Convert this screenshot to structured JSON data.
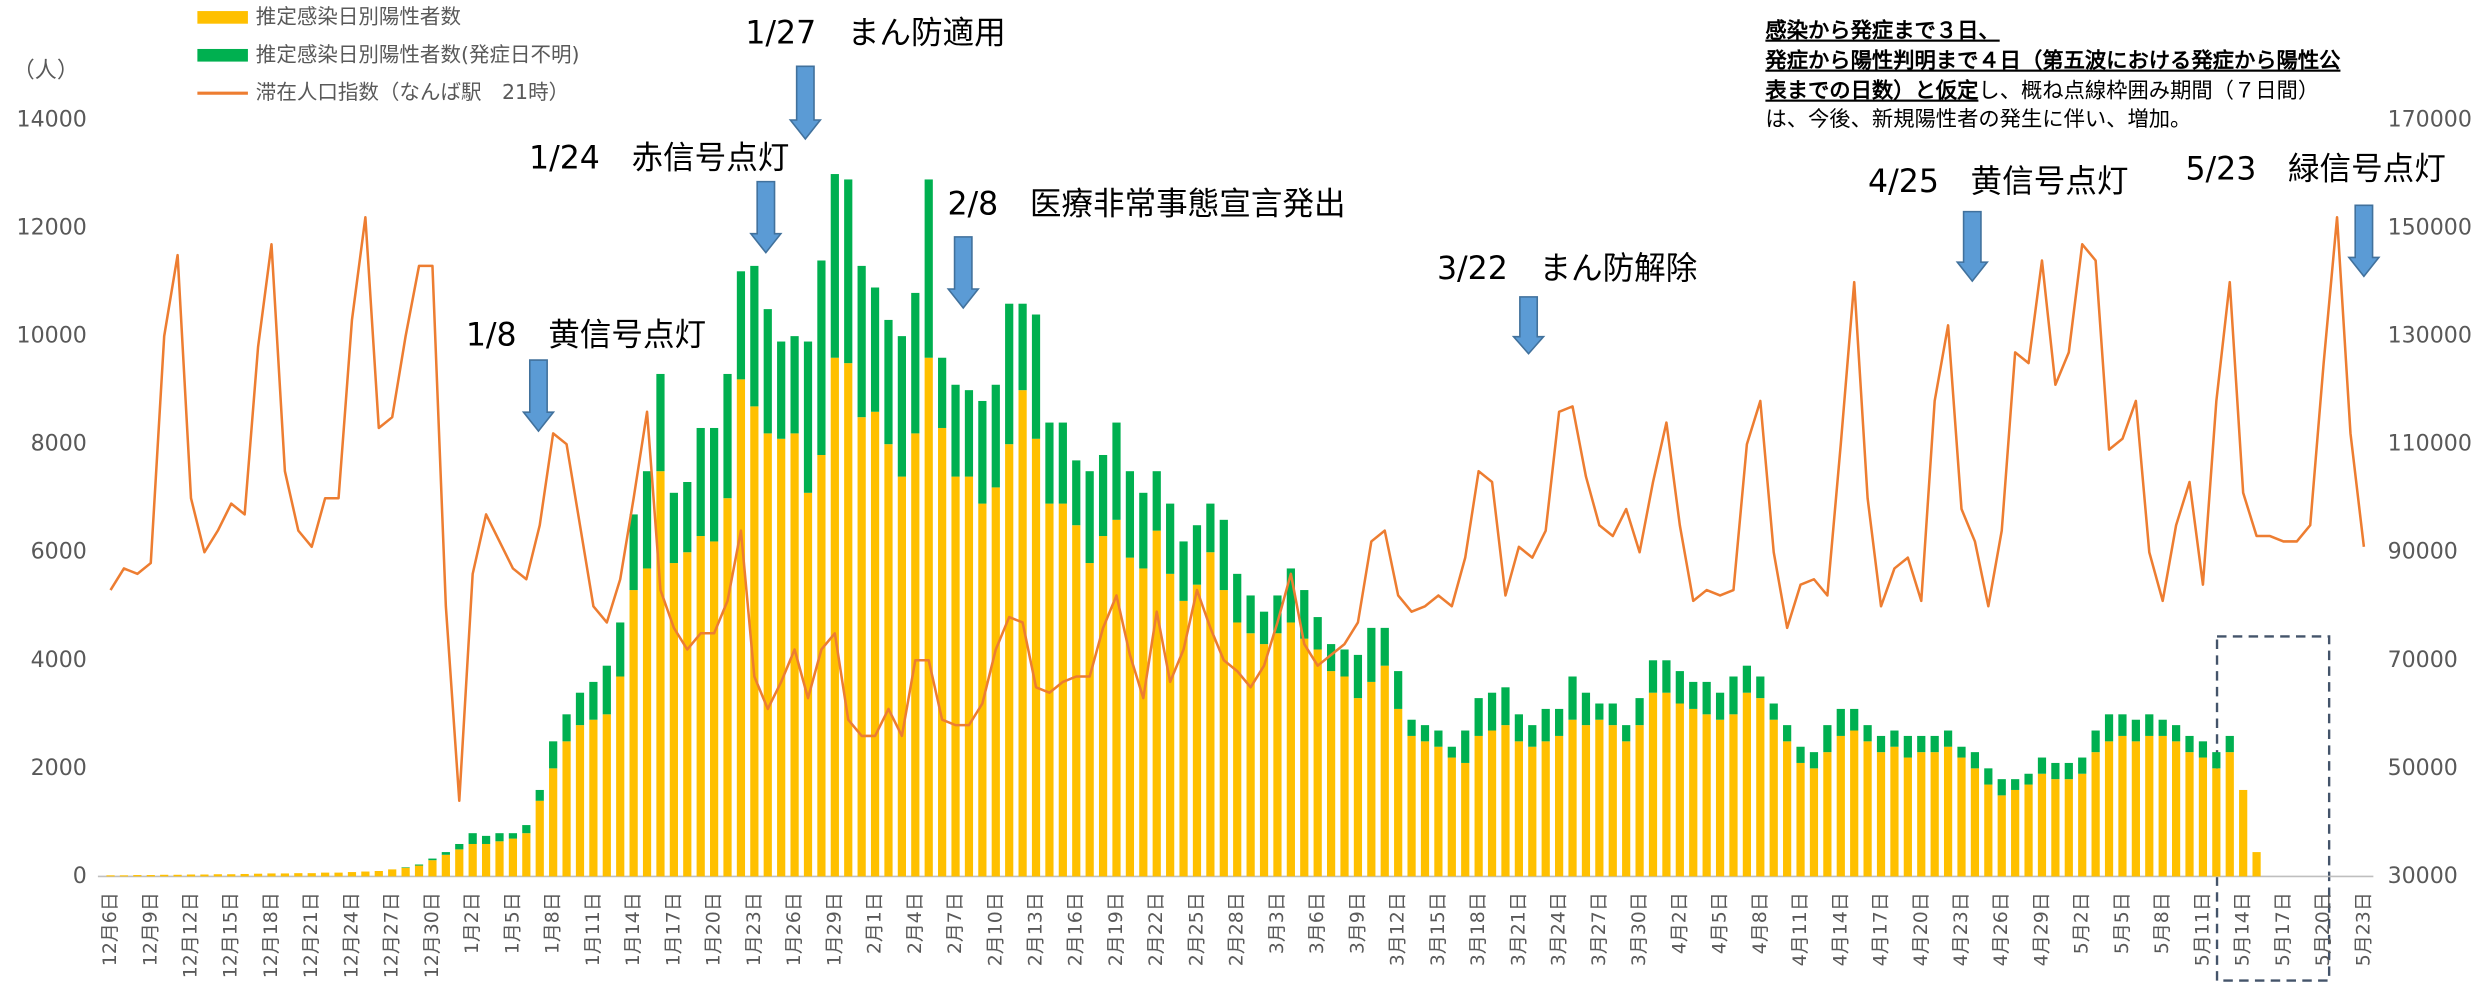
{
  "chart_data": {
    "type": "bar",
    "y_unit_label": "（人）",
    "categories": [
      "12月6日",
      null,
      null,
      "12月9日",
      null,
      null,
      "12月12日",
      null,
      null,
      "12月15日",
      null,
      null,
      "12月18日",
      null,
      null,
      "12月21日",
      null,
      null,
      "12月24日",
      null,
      null,
      "12月27日",
      null,
      null,
      "12月30日",
      null,
      null,
      "1月2日",
      null,
      null,
      "1月5日",
      null,
      null,
      "1月8日",
      null,
      null,
      "1月11日",
      null,
      null,
      "1月14日",
      null,
      null,
      "1月17日",
      null,
      null,
      "1月20日",
      null,
      null,
      "1月23日",
      null,
      null,
      "1月26日",
      null,
      null,
      "1月29日",
      null,
      null,
      "2月1日",
      null,
      null,
      "2月4日",
      null,
      null,
      "2月7日",
      null,
      null,
      "2月10日",
      null,
      null,
      "2月13日",
      null,
      null,
      "2月16日",
      null,
      null,
      "2月19日",
      null,
      null,
      "2月22日",
      null,
      null,
      "2月25日",
      null,
      null,
      "2月28日",
      null,
      null,
      "3月3日",
      null,
      null,
      "3月6日",
      null,
      null,
      "3月9日",
      null,
      null,
      "3月12日",
      null,
      null,
      "3月15日",
      null,
      null,
      "3月18日",
      null,
      null,
      "3月21日",
      null,
      null,
      "3月24日",
      null,
      null,
      "3月27日",
      null,
      null,
      "3月30日",
      null,
      null,
      "4月2日",
      null,
      null,
      "4月5日",
      null,
      null,
      "4月8日",
      null,
      null,
      "4月11日",
      null,
      null,
      "4月14日",
      null,
      null,
      "4月17日",
      null,
      null,
      "4月20日",
      null,
      null,
      "4月23日",
      null,
      null,
      "4月26日",
      null,
      null,
      "4月29日",
      null,
      null,
      "5月2日",
      null,
      null,
      "5月5日",
      null,
      null,
      "5月8日",
      null,
      null,
      "5月11日",
      null,
      null,
      "5月14日",
      null,
      null,
      "5月17日",
      null,
      null,
      "5月20日",
      null,
      null,
      "5月23日"
    ],
    "series": [
      {
        "name": "推定感染日別陽性者数",
        "color": "#ffc000",
        "stack": "a",
        "values": [
          20,
          20,
          25,
          25,
          30,
          30,
          35,
          35,
          40,
          40,
          45,
          50,
          55,
          55,
          60,
          60,
          70,
          70,
          80,
          90,
          100,
          130,
          160,
          200,
          300,
          400,
          500,
          600,
          600,
          650,
          700,
          800,
          1400,
          2000,
          2500,
          2800,
          2900,
          3000,
          3700,
          5300,
          5700,
          7500,
          5800,
          6000,
          6300,
          6200,
          7000,
          9200,
          8700,
          8200,
          8100,
          8200,
          7100,
          7800,
          9600,
          9500,
          8500,
          8600,
          8000,
          7400,
          8200,
          9600,
          8300,
          7400,
          7400,
          6900,
          7200,
          8000,
          9000,
          8100,
          6900,
          6900,
          6500,
          5800,
          6300,
          6600,
          5900,
          5700,
          6400,
          5600,
          5100,
          5400,
          6000,
          5300,
          4700,
          4500,
          4300,
          4500,
          4700,
          4400,
          4200,
          3800,
          3700,
          3300,
          3600,
          3900,
          3100,
          2600,
          2500,
          2400,
          2200,
          2100,
          2600,
          2700,
          2800,
          2500,
          2400,
          2500,
          2600,
          2900,
          2800,
          2900,
          2800,
          2500,
          2800,
          3400,
          3400,
          3200,
          3100,
          3000,
          2900,
          3000,
          3400,
          3300,
          2900,
          2500,
          2100,
          2000,
          2300,
          2600,
          2700,
          2500,
          2300,
          2400,
          2200,
          2300,
          2300,
          2400,
          2200,
          2000,
          1700,
          1500,
          1600,
          1700,
          1900,
          1800,
          1800,
          1900,
          2300,
          2500,
          2600,
          2500,
          2600,
          2600,
          2500,
          2300,
          2200,
          2000,
          2300,
          1600,
          450,
          0,
          0,
          0,
          0,
          0,
          0,
          0,
          0
        ]
      },
      {
        "name": "推定感染日別陽性者数(発症日不明)",
        "color": "#00b050",
        "stack": "a",
        "values": [
          0,
          0,
          0,
          0,
          0,
          0,
          0,
          0,
          0,
          0,
          0,
          0,
          0,
          0,
          0,
          0,
          0,
          0,
          0,
          0,
          0,
          0,
          10,
          20,
          30,
          50,
          100,
          200,
          150,
          150,
          100,
          150,
          200,
          500,
          500,
          600,
          700,
          900,
          1000,
          1400,
          1800,
          1800,
          1300,
          1300,
          2000,
          2100,
          2300,
          2000,
          2600,
          2300,
          1800,
          1800,
          2800,
          3600,
          3400,
          3400,
          2800,
          2300,
          2300,
          2600,
          2600,
          3300,
          1300,
          1700,
          1600,
          1900,
          1900,
          2600,
          1600,
          2300,
          1500,
          1500,
          1200,
          1700,
          1500,
          1800,
          1600,
          1400,
          1100,
          1300,
          1100,
          1100,
          900,
          1300,
          900,
          700,
          600,
          700,
          1000,
          900,
          600,
          500,
          500,
          800,
          1000,
          700,
          700,
          300,
          300,
          300,
          200,
          600,
          700,
          700,
          700,
          500,
          400,
          600,
          500,
          800,
          600,
          300,
          400,
          300,
          500,
          600,
          600,
          600,
          500,
          600,
          500,
          700,
          500,
          400,
          300,
          300,
          300,
          300,
          500,
          500,
          400,
          300,
          300,
          300,
          400,
          300,
          300,
          300,
          200,
          300,
          300,
          300,
          200,
          200,
          300,
          300,
          300,
          300,
          400,
          500,
          400,
          400,
          400,
          300,
          300,
          300,
          300,
          300,
          300,
          0,
          0,
          0,
          0,
          0,
          0,
          0,
          0,
          0,
          0
        ]
      },
      {
        "name": "滞在人口指数（なんば駅　21時）",
        "color": "#ed7d31",
        "type": "line",
        "axis": "y2",
        "values": [
          83000,
          87000,
          86000,
          88000,
          130000,
          145000,
          100000,
          90000,
          94000,
          99000,
          97000,
          128000,
          147000,
          105000,
          94000,
          91000,
          100000,
          100000,
          133000,
          152000,
          113000,
          115000,
          130000,
          143000,
          143000,
          80000,
          44000,
          86000,
          97000,
          92000,
          87000,
          85000,
          95000,
          112000,
          110000,
          95000,
          80000,
          77000,
          85000,
          100000,
          116000,
          83000,
          76000,
          72000,
          75000,
          75000,
          81000,
          94000,
          67000,
          61000,
          66000,
          72000,
          63000,
          72000,
          75000,
          59000,
          56000,
          56000,
          61000,
          56000,
          70000,
          70000,
          59000,
          58000,
          58000,
          62000,
          72000,
          78000,
          77000,
          65000,
          64000,
          66000,
          67000,
          67000,
          76000,
          82000,
          71000,
          63000,
          79000,
          66000,
          72000,
          83000,
          76000,
          70000,
          68000,
          65000,
          69000,
          77000,
          86000,
          73000,
          69000,
          71000,
          73000,
          77000,
          92000,
          94000,
          82000,
          79000,
          80000,
          82000,
          80000,
          89000,
          105000,
          103000,
          82000,
          91000,
          89000,
          94000,
          116000,
          117000,
          104000,
          95000,
          93000,
          98000,
          90000,
          103000,
          114000,
          95000,
          81000,
          83000,
          82000,
          83000,
          110000,
          118000,
          90000,
          76000,
          84000,
          85000,
          82000,
          110000,
          140000,
          100000,
          80000,
          87000,
          89000,
          81000,
          118000,
          132000,
          98000,
          92000,
          80000,
          94000,
          127000,
          125000,
          144000,
          121000,
          127000,
          147000,
          144000,
          109000,
          111000,
          118000,
          90000,
          81000,
          95000,
          103000,
          84000,
          118000,
          140000,
          101000,
          93000,
          93000,
          92000,
          92000,
          95000,
          125000,
          152000,
          112000,
          91000
        ]
      }
    ],
    "ylim": [
      0,
      14000
    ],
    "yticks": [
      0,
      2000,
      4000,
      6000,
      8000,
      10000,
      12000,
      14000
    ],
    "y2lim": [
      30000,
      170000
    ],
    "y2ticks": [
      30000,
      50000,
      70000,
      90000,
      110000,
      130000,
      150000,
      170000
    ],
    "grid": false,
    "legend": "top-left",
    "annotations": [
      "1/8　黄信号点灯",
      "1/24　赤信号点灯",
      "1/27　まん防適用",
      "2/8　医療非常事態宣言発出",
      "3/22　まん防解除",
      "4/25　黄信号点灯",
      "5/23　緑信号点灯"
    ],
    "note": {
      "bold": [
        "感染から発症まで３日、",
        "発症から陽性判明まで４日（第五波における発症から陽性公",
        "表までの日数）と仮定"
      ],
      "normal": [
        "し、概ね点線枠囲み期間（７日間）",
        "は、今後、新規陽性者の発生に伴い、増加。"
      ]
    }
  }
}
